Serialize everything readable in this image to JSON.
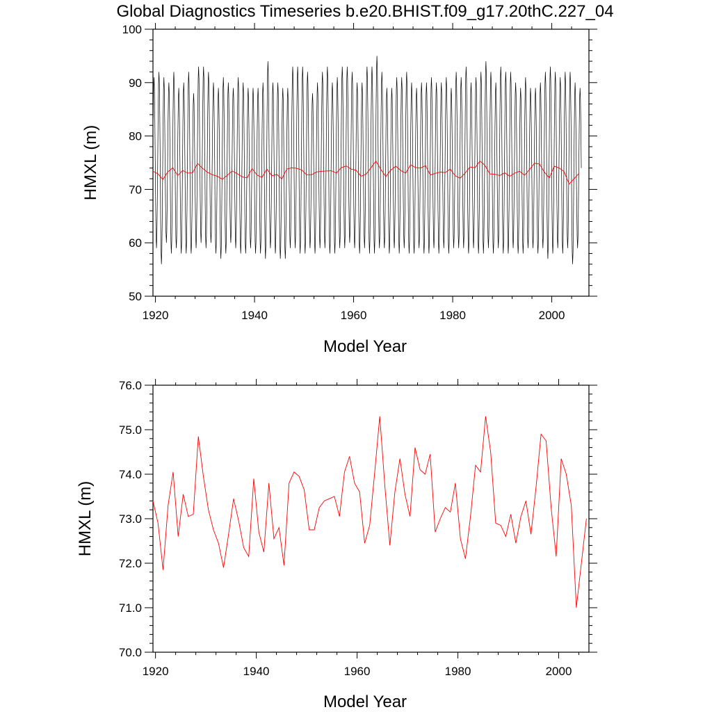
{
  "title": "Global Diagnostics Timeseries b.e20.BHIST.f09_g17.20thC.227_04",
  "colors": {
    "monthly": "#000000",
    "annual": "#ff0000"
  },
  "chart_data": [
    {
      "type": "line",
      "xlabel": "Model Year",
      "ylabel": "HMXL (m)",
      "xlim": [
        1919.5,
        2007.5
      ],
      "ylim": [
        50,
        100
      ],
      "xticks": [
        1920,
        1940,
        1960,
        1980,
        2000
      ],
      "xtick_labels": [
        "1920",
        "1940",
        "1960",
        "1980",
        "2000"
      ],
      "yticks": [
        50,
        60,
        70,
        80,
        90,
        100
      ],
      "ytick_labels": [
        "50",
        "60",
        "70",
        "80",
        "90",
        "100"
      ],
      "grid": false,
      "series": [
        {
          "kind": "monthly-seasonal-cycle",
          "color": "#000000",
          "years": [
            1919,
            2005
          ],
          "annual_peaks": [
            91,
            92,
            91,
            90,
            92,
            89,
            90,
            92,
            88,
            93,
            93,
            92,
            90,
            89,
            91,
            90,
            89,
            91,
            90,
            89,
            89,
            89,
            90,
            94,
            90,
            90,
            89,
            89,
            93,
            93,
            93,
            92,
            88,
            90,
            92,
            93,
            90,
            91,
            93,
            93,
            92,
            90,
            90,
            93,
            93,
            95,
            92,
            89,
            89,
            91,
            91,
            92,
            90,
            89,
            90,
            90,
            91,
            90,
            90,
            91,
            89,
            92,
            91,
            93,
            90,
            91,
            92,
            94,
            92,
            90,
            93,
            92,
            92,
            90,
            89,
            91,
            89,
            89,
            90,
            92,
            93,
            92,
            91,
            92,
            92,
            90,
            89
          ],
          "annual_troughs": [
            60,
            59,
            56,
            60,
            58,
            59,
            58,
            58,
            58,
            59,
            60,
            59,
            60,
            58,
            57,
            58,
            60,
            59,
            58,
            58,
            59,
            58,
            58,
            57,
            59,
            58,
            57,
            57,
            59,
            59,
            58,
            58,
            59,
            58,
            59,
            59,
            58,
            58,
            59,
            59,
            60,
            59,
            58,
            59,
            58,
            58,
            59,
            59,
            58,
            59,
            58,
            59,
            58,
            58,
            59,
            58,
            58,
            59,
            58,
            59,
            58,
            59,
            59,
            59,
            58,
            59,
            58,
            58,
            59,
            58,
            59,
            58,
            58,
            59,
            58,
            58,
            59,
            59,
            58,
            59,
            57,
            58,
            59,
            58,
            59,
            56,
            59
          ]
        },
        {
          "kind": "annual-mean",
          "color": "#ff0000",
          "x": [
            1919,
            1920,
            1921,
            1922,
            1923,
            1924,
            1925,
            1926,
            1927,
            1928,
            1929,
            1930,
            1931,
            1932,
            1933,
            1934,
            1935,
            1936,
            1937,
            1938,
            1939,
            1940,
            1941,
            1942,
            1943,
            1944,
            1945,
            1946,
            1947,
            1948,
            1949,
            1950,
            1951,
            1952,
            1953,
            1954,
            1955,
            1956,
            1957,
            1958,
            1959,
            1960,
            1961,
            1962,
            1963,
            1964,
            1965,
            1966,
            1967,
            1968,
            1969,
            1970,
            1971,
            1972,
            1973,
            1974,
            1975,
            1976,
            1977,
            1978,
            1979,
            1980,
            1981,
            1982,
            1983,
            1984,
            1985,
            1986,
            1987,
            1988,
            1989,
            1990,
            1991,
            1992,
            1993,
            1994,
            1995,
            1996,
            1997,
            1998,
            1999,
            2000,
            2001,
            2002,
            2003,
            2004,
            2005
          ],
          "values": [
            73.4,
            72.9,
            71.85,
            73.3,
            74.05,
            72.6,
            73.55,
            73.05,
            73.1,
            74.85,
            73.95,
            73.2,
            72.75,
            72.45,
            71.9,
            72.65,
            73.45,
            72.95,
            72.35,
            72.15,
            73.9,
            72.7,
            72.25,
            73.8,
            72.55,
            72.8,
            71.95,
            73.8,
            74.05,
            73.95,
            73.65,
            72.75,
            72.75,
            73.25,
            73.4,
            73.45,
            73.5,
            73.05,
            74.05,
            74.4,
            73.8,
            73.6,
            72.45,
            72.85,
            74.05,
            75.3,
            73.75,
            72.4,
            73.6,
            74.35,
            73.55,
            73.05,
            74.6,
            74.1,
            74.0,
            74.45,
            72.7,
            73.0,
            73.25,
            73.15,
            73.8,
            72.55,
            72.1,
            73.05,
            74.2,
            74.05,
            75.3,
            74.5,
            72.9,
            72.85,
            72.6,
            73.1,
            72.45,
            73.05,
            73.4,
            72.65,
            73.7,
            74.9,
            74.75,
            73.25,
            72.15,
            74.35,
            74.0,
            73.3,
            71.0,
            72.0,
            73.0
          ]
        }
      ]
    },
    {
      "type": "line",
      "xlabel": "Model Year",
      "ylabel": "HMXL (m)",
      "xlim": [
        1919.5,
        2006.0
      ],
      "ylim": [
        70.0,
        76.0
      ],
      "xticks": [
        1920,
        1940,
        1960,
        1980,
        2000
      ],
      "xtick_labels": [
        "1920",
        "1940",
        "1960",
        "1980",
        "2000"
      ],
      "yticks": [
        70,
        71,
        72,
        73,
        74,
        75,
        76
      ],
      "ytick_labels": [
        "70.0",
        "71.0",
        "72.0",
        "73.0",
        "74.0",
        "75.0",
        "76.0"
      ],
      "grid": false,
      "series": [
        {
          "kind": "annual-mean",
          "color": "#ff0000",
          "x": [
            1919,
            1920,
            1921,
            1922,
            1923,
            1924,
            1925,
            1926,
            1927,
            1928,
            1929,
            1930,
            1931,
            1932,
            1933,
            1934,
            1935,
            1936,
            1937,
            1938,
            1939,
            1940,
            1941,
            1942,
            1943,
            1944,
            1945,
            1946,
            1947,
            1948,
            1949,
            1950,
            1951,
            1952,
            1953,
            1954,
            1955,
            1956,
            1957,
            1958,
            1959,
            1960,
            1961,
            1962,
            1963,
            1964,
            1965,
            1966,
            1967,
            1968,
            1969,
            1970,
            1971,
            1972,
            1973,
            1974,
            1975,
            1976,
            1977,
            1978,
            1979,
            1980,
            1981,
            1982,
            1983,
            1984,
            1985,
            1986,
            1987,
            1988,
            1989,
            1990,
            1991,
            1992,
            1993,
            1994,
            1995,
            1996,
            1997,
            1998,
            1999,
            2000,
            2001,
            2002,
            2003,
            2004,
            2005
          ],
          "values": [
            73.4,
            72.9,
            71.85,
            73.3,
            74.05,
            72.6,
            73.55,
            73.05,
            73.1,
            74.85,
            73.95,
            73.2,
            72.75,
            72.45,
            71.9,
            72.65,
            73.45,
            72.95,
            72.35,
            72.15,
            73.9,
            72.7,
            72.25,
            73.8,
            72.55,
            72.8,
            71.95,
            73.8,
            74.05,
            73.95,
            73.65,
            72.75,
            72.75,
            73.25,
            73.4,
            73.45,
            73.5,
            73.05,
            74.05,
            74.4,
            73.8,
            73.6,
            72.45,
            72.85,
            74.05,
            75.3,
            73.75,
            72.4,
            73.6,
            74.35,
            73.55,
            73.05,
            74.6,
            74.1,
            74.0,
            74.45,
            72.7,
            73.0,
            73.25,
            73.15,
            73.8,
            72.55,
            72.1,
            73.05,
            74.2,
            74.05,
            75.3,
            74.5,
            72.9,
            72.85,
            72.6,
            73.1,
            72.45,
            73.05,
            73.4,
            72.65,
            73.7,
            74.9,
            74.75,
            73.25,
            72.15,
            74.35,
            74.0,
            73.3,
            71.0,
            72.0,
            73.0
          ]
        }
      ]
    }
  ]
}
